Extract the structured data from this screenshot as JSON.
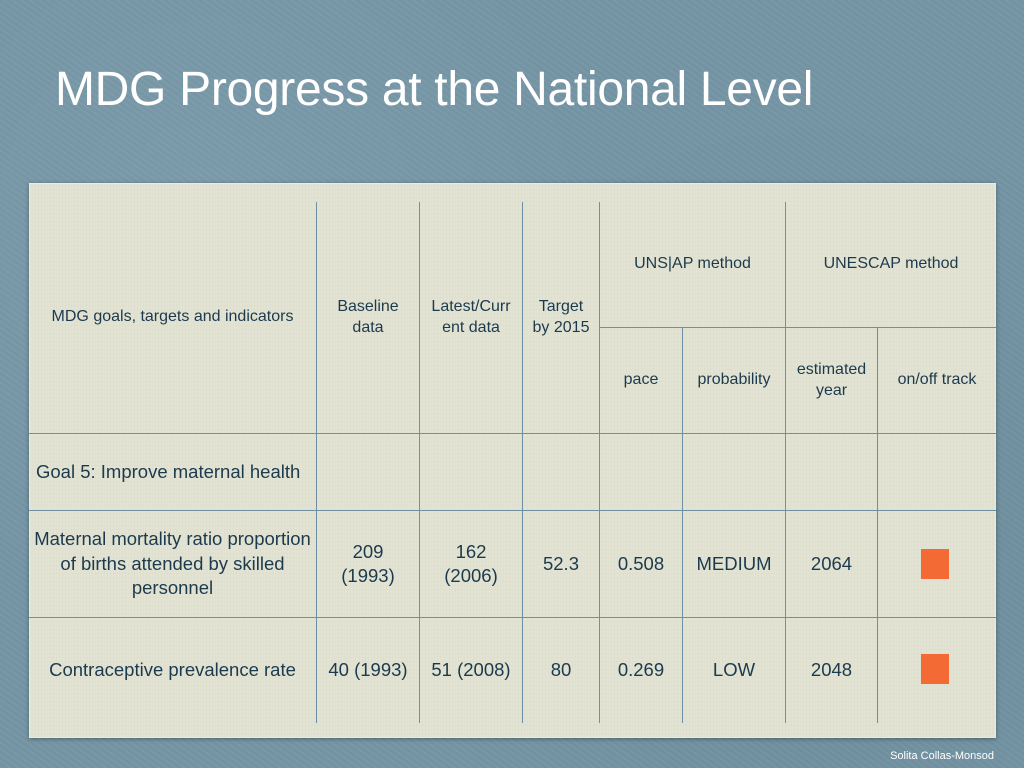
{
  "slide": {
    "title": "MDG Progress at the National Level",
    "footer": "Solita Collas-Monsod"
  },
  "table": {
    "headers": {
      "indicator": "MDG goals, targets and indicators",
      "baseline": "Baseline data",
      "latest": "Latest/Curr ent data",
      "target": "Target by 2015",
      "unsiap_method": "UNS|AP method",
      "unescap_method": "UNESCAP method",
      "pace": "pace",
      "probability": "probability",
      "estimated_year": "estimated year",
      "track": "on/off track"
    },
    "goal_row": {
      "label": "Goal 5: Improve maternal health"
    },
    "rows": [
      {
        "indicator": "Maternal mortality ratio proportion of births attended by skilled personnel",
        "baseline": "209 (1993)",
        "latest": "162 (2006)",
        "target": "52.3",
        "pace": "0.508",
        "probability": "MEDIUM",
        "estimated_year": "2064",
        "track_status": "off track",
        "track_color": "#f36a35"
      },
      {
        "indicator": "Contraceptive prevalence rate",
        "baseline": "40 (1993)",
        "latest": "51 (2008)",
        "target": "80",
        "pace": "0.269",
        "probability": "LOW",
        "estimated_year": "2048",
        "track_status": "off track",
        "track_color": "#f36a35"
      }
    ]
  },
  "colors": {
    "background": "#7596a6",
    "paper": "#e2e3d2",
    "grid_lines": "#6f8fa4",
    "text": "#1c3a4e",
    "off_track_marker": "#f36a35"
  }
}
